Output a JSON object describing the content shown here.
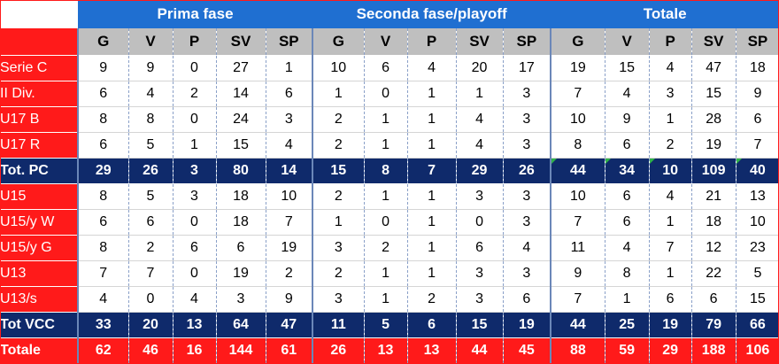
{
  "groups": [
    "Prima fase",
    "Seconda fase/playoff",
    "Totale"
  ],
  "columns": [
    "G",
    "V",
    "P",
    "SV",
    "SP"
  ],
  "rows": [
    {
      "label": "Serie C",
      "type": "normal",
      "values": [
        "9",
        "9",
        "0",
        "27",
        "1",
        "10",
        "6",
        "4",
        "20",
        "17",
        "19",
        "15",
        "4",
        "47",
        "18"
      ]
    },
    {
      "label": "II Div.",
      "type": "normal",
      "values": [
        "6",
        "4",
        "2",
        "14",
        "6",
        "1",
        "0",
        "1",
        "1",
        "3",
        "7",
        "4",
        "3",
        "15",
        "9"
      ]
    },
    {
      "label": "U17 B",
      "type": "normal",
      "values": [
        "8",
        "8",
        "0",
        "24",
        "3",
        "2",
        "1",
        "1",
        "4",
        "3",
        "10",
        "9",
        "1",
        "28",
        "6"
      ]
    },
    {
      "label": "U17 R",
      "type": "normal",
      "values": [
        "6",
        "5",
        "1",
        "15",
        "4",
        "2",
        "1",
        "1",
        "4",
        "3",
        "8",
        "6",
        "2",
        "19",
        "7"
      ]
    },
    {
      "label": "Tot. PC",
      "type": "total",
      "values": [
        "29",
        "26",
        "3",
        "80",
        "14",
        "15",
        "8",
        "7",
        "29",
        "26",
        "44",
        "34",
        "10",
        "109",
        "40"
      ]
    },
    {
      "label": "U15",
      "type": "normal",
      "values": [
        "8",
        "5",
        "3",
        "18",
        "10",
        "2",
        "1",
        "1",
        "3",
        "3",
        "10",
        "6",
        "4",
        "21",
        "13"
      ]
    },
    {
      "label": "U15/y W",
      "type": "normal",
      "values": [
        "6",
        "6",
        "0",
        "18",
        "7",
        "1",
        "0",
        "1",
        "0",
        "3",
        "7",
        "6",
        "1",
        "18",
        "10"
      ]
    },
    {
      "label": "U15/y G",
      "type": "normal",
      "values": [
        "8",
        "2",
        "6",
        "6",
        "19",
        "3",
        "2",
        "1",
        "6",
        "4",
        "11",
        "4",
        "7",
        "12",
        "23"
      ]
    },
    {
      "label": "U13",
      "type": "normal",
      "values": [
        "7",
        "7",
        "0",
        "19",
        "2",
        "2",
        "1",
        "1",
        "3",
        "3",
        "9",
        "8",
        "1",
        "22",
        "5"
      ]
    },
    {
      "label": "U13/s",
      "type": "normal",
      "values": [
        "4",
        "0",
        "4",
        "3",
        "9",
        "3",
        "1",
        "2",
        "3",
        "6",
        "7",
        "1",
        "6",
        "6",
        "15"
      ]
    },
    {
      "label": "Tot VCC",
      "type": "total",
      "values": [
        "33",
        "20",
        "13",
        "64",
        "47",
        "11",
        "5",
        "6",
        "15",
        "19",
        "44",
        "25",
        "19",
        "79",
        "66"
      ]
    },
    {
      "label": "Totale",
      "type": "grand",
      "values": [
        "62",
        "46",
        "16",
        "144",
        "61",
        "26",
        "13",
        "13",
        "44",
        "45",
        "88",
        "59",
        "29",
        "188",
        "106"
      ]
    }
  ],
  "colors": {
    "header_blue": "#1f6fd1",
    "total_navy": "#0f2a6b",
    "label_red": "#ff1a1a",
    "header_grey": "#bfbfbf",
    "flag_green": "#2fb24a"
  }
}
